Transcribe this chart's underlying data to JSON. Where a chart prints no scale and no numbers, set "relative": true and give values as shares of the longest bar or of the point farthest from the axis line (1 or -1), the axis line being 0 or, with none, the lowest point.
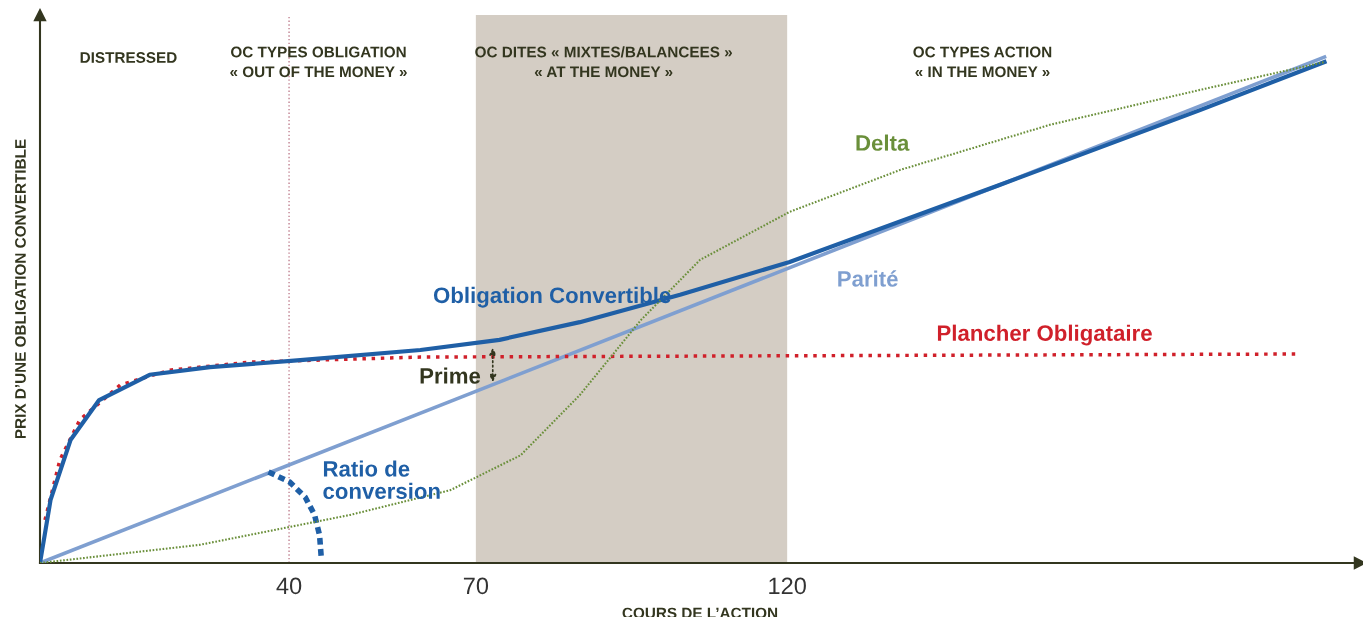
{
  "chart_data": {
    "type": "line",
    "relative": true,
    "xlabel": "COURS DE L’ACTION",
    "ylabel": "PRIX D’UNE OBLIGATION CONVERTIBLE",
    "xlim": [
      0,
      212
    ],
    "xticks": [
      40,
      70,
      120
    ],
    "tick_labels": "x",
    "grid": false,
    "series": [
      {
        "color": "#1f5fa6",
        "line_style": "solid",
        "x": [
          0,
          1.7,
          4.9,
          9.5,
          17.6,
          27.3,
          41.8,
          61.1,
          73.8,
          86.7,
          102.8,
          120.4,
          154.1,
          186.3,
          206.3
        ],
        "values": [
          0,
          0.125,
          0.243,
          0.322,
          0.372,
          0.387,
          0.401,
          0.421,
          0.441,
          0.476,
          0.53,
          0.595,
          0.747,
          0.895,
          0.99
        ]
      },
      {
        "color": "#7f9fd0",
        "line_style": "solid",
        "x": [
          0,
          206.3
        ],
        "values": [
          0,
          1.0
        ]
      },
      {
        "color": "#d0202a",
        "line_style": "dotted",
        "x": [
          0.8,
          3.2,
          6.4,
          12.9,
          20.8,
          33.7,
          61.1,
          201.6
        ],
        "values": [
          0.085,
          0.204,
          0.283,
          0.352,
          0.381,
          0.397,
          0.407,
          0.413
        ]
      },
      {
        "color": "#6a8f3a",
        "line_style": "dotted",
        "x": [
          0,
          25.7,
          49.8,
          65.9,
          77.2,
          86.7,
          96.5,
          106,
          120.4,
          138.2,
          162.2,
          186.3,
          206.3
        ],
        "values": [
          0,
          0.036,
          0.095,
          0.144,
          0.213,
          0.332,
          0.48,
          0.599,
          0.694,
          0.777,
          0.866,
          0.935,
          0.99
        ]
      },
      {
        "color": "#1f5fa6",
        "line_style": "dashed",
        "x": [
          36.7,
          40.1,
          42.6,
          44.1,
          44.9,
          45.2
        ],
        "values": [
          0.18,
          0.16,
          0.13,
          0.095,
          0.055,
          0.006
        ]
      }
    ],
    "annotations": [
      "Obligation Convertible",
      "Parité",
      "Plancher Obligataire",
      "Delta",
      "Ratio de\nconversion",
      "Prime",
      "DISTRESSED",
      "OC TYPES OBLIGATION\n« OUT OF THE MONEY »",
      "OC DITES « MIXTES/BALANCEES »\n« AT THE MONEY »",
      "OC TYPES ACTION\n« IN THE MONEY »"
    ],
    "ref_lines": [
      {
        "axis": "x",
        "value": 40,
        "color": "#c08090",
        "line_style": "dotted"
      }
    ],
    "bands": [
      {
        "axis": "x",
        "from": 70,
        "to": 120,
        "color": "#d4cdc4"
      }
    ]
  }
}
